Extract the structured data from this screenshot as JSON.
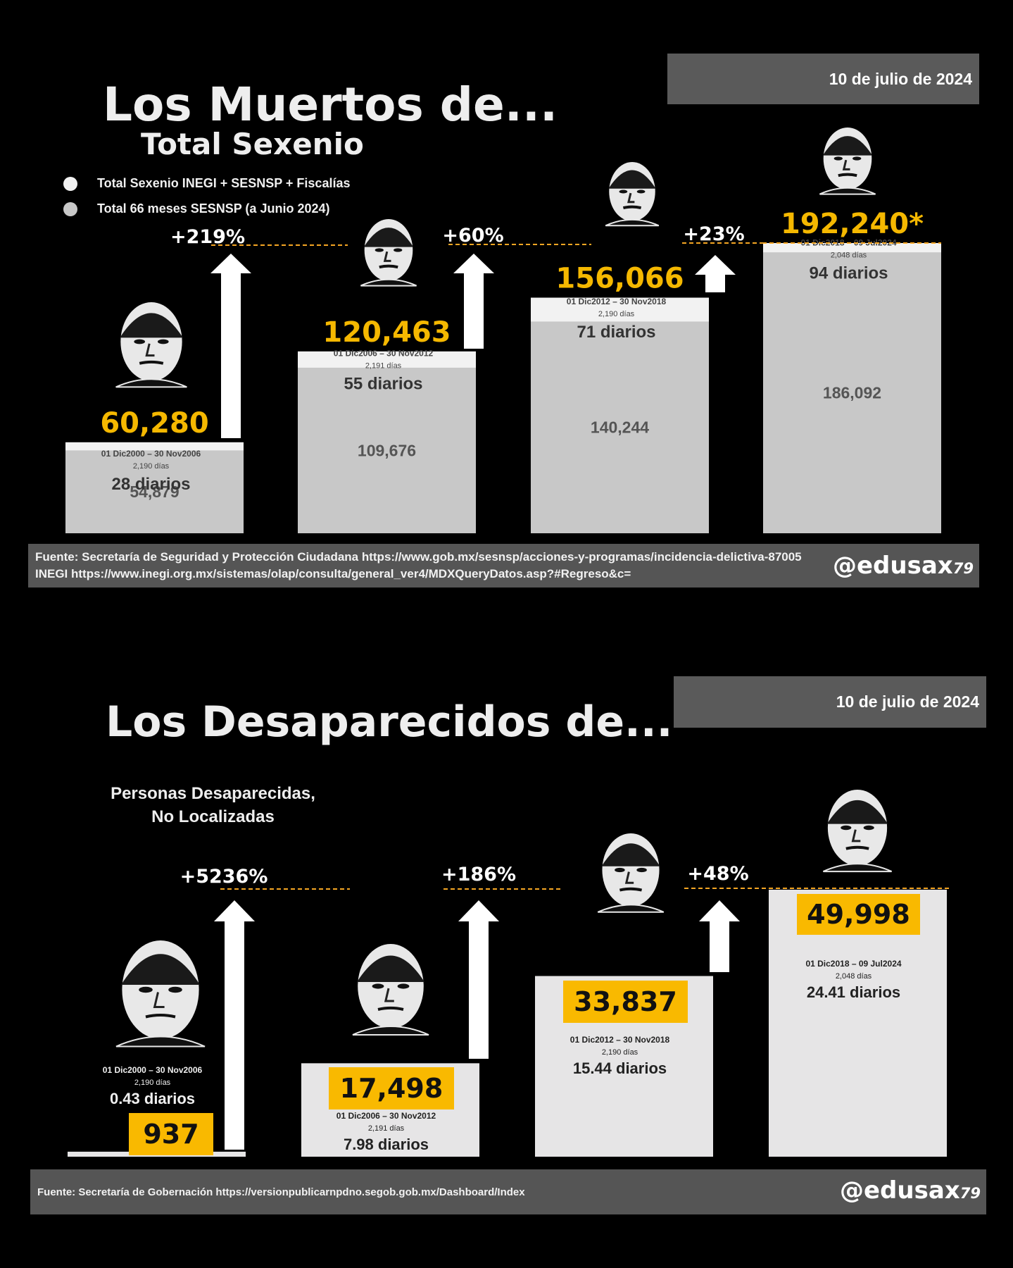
{
  "panel_muertos": {
    "date": "10 de julio de 2024",
    "title": "Los Muertos de...",
    "subtitle": "Total Sexenio",
    "legend": [
      {
        "label": "Total Sexenio INEGI + SESNSP + Fiscalías",
        "color": "#f2f2f2"
      },
      {
        "label": "Total 66 meses SESNSP (a Junio 2024)",
        "color": "#c8c8c8"
      }
    ],
    "source_line1": "Fuente: Secretaría de Seguridad y Protección Ciudadana https://www.gob.mx/sesnsp/acciones-y-programas/incidencia-delictiva-87005",
    "source_line2": "INEGI https://www.inegi.org.mx/sistemas/olap/consulta/general_ver4/MDXQueryDatos.asp?#Regreso&c=",
    "handle": "@edusax",
    "handle_suffix": "79"
  },
  "panel_desaparecidos": {
    "date": "10 de julio de 2024",
    "title": "Los Desaparecidos de...",
    "subtitle_line1": "Personas Desaparecidas,",
    "subtitle_line2": "No Localizadas",
    "source": "Fuente: Secretaría de Gobernación https://versionpublicarnpdno.segob.gob.mx/Dashboard/Index",
    "handle": "@edusax",
    "handle_suffix": "79"
  },
  "colors": {
    "background": "#000000",
    "total_bar": "#f2f2f2",
    "sesnsp_bar": "#c8c8c8",
    "desap_bar": "#e6e5e6",
    "value_yellow": "#f5b800",
    "label_box_yellow": "#f9b900",
    "dash_line": "#f5a623",
    "arrow": "#ffffff"
  },
  "chart_data": [
    {
      "type": "bar",
      "title": "Los Muertos de...",
      "subtitle": "Total Sexenio",
      "categories": [
        "01 Dic2000 – 30 Nov2006",
        "01 Dic2006 – 30 Nov2012",
        "01 Dic2012 – 30 Nov2018",
        "01 Dic2018 – 09 Jul2024"
      ],
      "series": [
        {
          "name": "Total Sexenio INEGI + SESNSP + Fiscalías",
          "values": [
            60280,
            120463,
            156066,
            192240
          ],
          "labels": [
            "60,280",
            "120,463",
            "156,066",
            "192,240*"
          ]
        },
        {
          "name": "Total 66 meses SESNSP (a Junio 2024)",
          "values": [
            54879,
            109676,
            140244,
            186092
          ],
          "labels": [
            "54,879",
            "109,676",
            "140,244",
            "186,092"
          ]
        }
      ],
      "days": [
        "2,190 días",
        "2,191 días",
        "2,190 días",
        "2,048 días"
      ],
      "daily": [
        "28 diarios",
        "55 diarios",
        "71 diarios",
        "94 diarios"
      ],
      "increases": [
        "+219%",
        "+60%",
        "+23%"
      ],
      "ylim": [
        0,
        220000
      ]
    },
    {
      "type": "bar",
      "title": "Los Desaparecidos de...",
      "subtitle": "Personas Desaparecidas, No Localizadas",
      "categories": [
        "01 Dic2000 – 30 Nov2006",
        "01 Dic2006 – 30 Nov2012",
        "01 Dic2012 – 30 Nov2018",
        "01 Dic2018 – 09 Jul2024"
      ],
      "values": [
        937,
        17498,
        33837,
        49998
      ],
      "labels": [
        "937",
        "17,498",
        "33,837",
        "49,998"
      ],
      "days": [
        "2,190 días",
        "2,191 días",
        "2,190 días",
        "2,048 días"
      ],
      "daily": [
        "0.43 diarios",
        "7.98 diarios",
        "15.44 diarios",
        "24.41 diarios"
      ],
      "increases": [
        "+5236%",
        "+186%",
        "+48%"
      ],
      "ylim": [
        0,
        53500
      ]
    }
  ]
}
